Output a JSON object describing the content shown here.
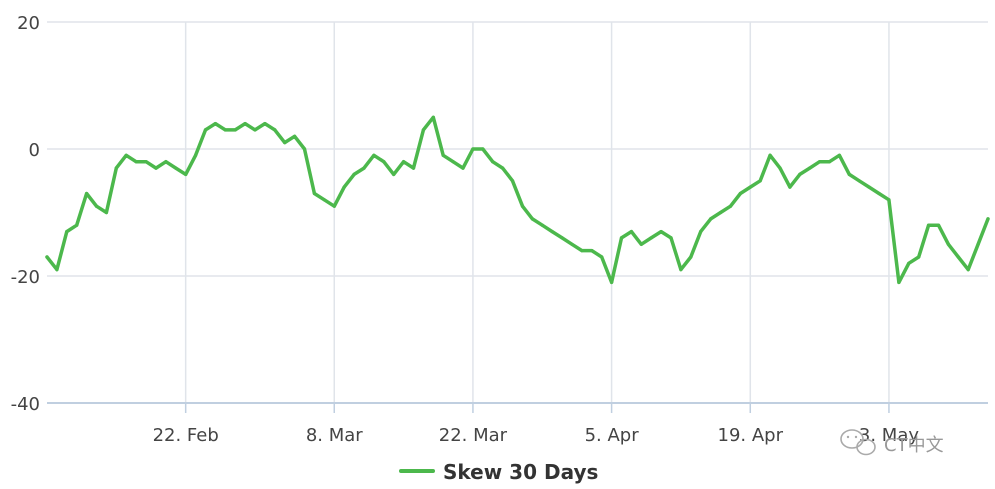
{
  "colors": {
    "series": "#4cb84c",
    "grid": "#e0e4ea",
    "axis": "#c0cfe0",
    "text": "#444444"
  },
  "chart_data": {
    "type": "line",
    "title": "",
    "xlabel": "",
    "ylabel": "",
    "x_ticks": [
      "22. Feb",
      "8. Mar",
      "22. Mar",
      "5. Apr",
      "19. Apr",
      "3. May"
    ],
    "y_ticks": [
      "20",
      "0",
      "-20",
      "-40"
    ],
    "ylim": [
      -40,
      20
    ],
    "grid": true,
    "legend_position": "bottom-center",
    "x_start": "2020-02-08",
    "x_end": "2020-05-13",
    "series": [
      {
        "name": "Skew 30 Days",
        "color": "#4cb84c",
        "x": [
          "2020-02-08",
          "2020-02-09",
          "2020-02-10",
          "2020-02-11",
          "2020-02-12",
          "2020-02-13",
          "2020-02-14",
          "2020-02-15",
          "2020-02-16",
          "2020-02-17",
          "2020-02-18",
          "2020-02-19",
          "2020-02-20",
          "2020-02-21",
          "2020-02-22",
          "2020-02-23",
          "2020-02-24",
          "2020-02-25",
          "2020-02-26",
          "2020-02-27",
          "2020-02-28",
          "2020-02-29",
          "2020-03-01",
          "2020-03-02",
          "2020-03-03",
          "2020-03-04",
          "2020-03-05",
          "2020-03-06",
          "2020-03-07",
          "2020-03-08",
          "2020-03-09",
          "2020-03-10",
          "2020-03-11",
          "2020-03-12",
          "2020-03-13",
          "2020-03-14",
          "2020-03-15",
          "2020-03-16",
          "2020-03-17",
          "2020-03-18",
          "2020-03-19",
          "2020-03-20",
          "2020-03-21",
          "2020-03-22",
          "2020-03-23",
          "2020-03-24",
          "2020-03-25",
          "2020-03-26",
          "2020-03-27",
          "2020-03-28",
          "2020-03-29",
          "2020-03-30",
          "2020-03-31",
          "2020-04-01",
          "2020-04-02",
          "2020-04-03",
          "2020-04-04",
          "2020-04-05",
          "2020-04-06",
          "2020-04-07",
          "2020-04-08",
          "2020-04-09",
          "2020-04-10",
          "2020-04-11",
          "2020-04-12",
          "2020-04-13",
          "2020-04-14",
          "2020-04-15",
          "2020-04-16",
          "2020-04-17",
          "2020-04-18",
          "2020-04-19",
          "2020-04-20",
          "2020-04-21",
          "2020-04-22",
          "2020-04-23",
          "2020-04-24",
          "2020-04-25",
          "2020-04-26",
          "2020-04-27",
          "2020-04-28",
          "2020-04-29",
          "2020-04-30",
          "2020-05-01",
          "2020-05-02",
          "2020-05-03",
          "2020-05-04",
          "2020-05-05",
          "2020-05-06",
          "2020-05-07",
          "2020-05-08",
          "2020-05-09",
          "2020-05-10",
          "2020-05-11",
          "2020-05-12",
          "2020-05-13"
        ],
        "values": [
          -17,
          -19,
          -13,
          -12,
          -7,
          -9,
          -10,
          -3,
          -1,
          -2,
          -2,
          -3,
          -2,
          -3,
          -4,
          -1,
          3,
          4,
          3,
          3,
          4,
          3,
          4,
          3,
          1,
          2,
          0,
          -7,
          -8,
          -9,
          -6,
          -4,
          -3,
          -1,
          -2,
          -4,
          -2,
          -3,
          3,
          5,
          -1,
          -2,
          -3,
          0,
          0,
          -2,
          -3,
          -5,
          -9,
          -11,
          -12,
          -13,
          -14,
          -15,
          -16,
          -16,
          -17,
          -21,
          -14,
          -13,
          -15,
          -14,
          -13,
          -14,
          -19,
          -17,
          -13,
          -11,
          -10,
          -9,
          -7,
          -6,
          -5,
          -1,
          -3,
          -6,
          -4,
          -3,
          -2,
          -2,
          -1,
          -4,
          -5,
          -6,
          -7,
          -8,
          -21,
          -18,
          -17,
          -12,
          -12,
          -15,
          -17,
          -19,
          -15,
          -11
        ]
      }
    ]
  },
  "watermark": {
    "text": "CT中文"
  }
}
